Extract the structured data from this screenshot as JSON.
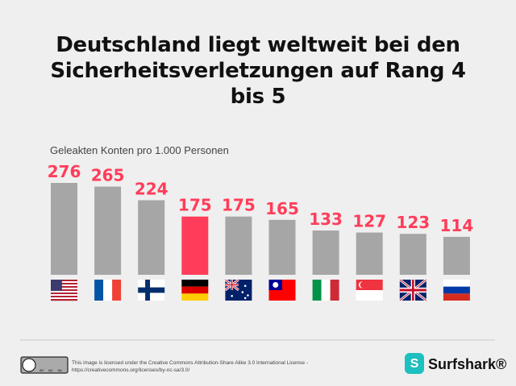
{
  "chart_data": {
    "type": "bar",
    "title": "Deutschland liegt weltweit bei den Sicherheitsverletzungen auf Rang 4 bis 5",
    "subtitle": "Geleakten Konten pro 1.000 Personen",
    "values": [
      276,
      265,
      224,
      175,
      175,
      165,
      133,
      127,
      123,
      114
    ],
    "colors": [
      "#a6a6a6",
      "#a6a6a6",
      "#a6a6a6",
      "#ff3d5a",
      "#a6a6a6",
      "#a6a6a6",
      "#a6a6a6",
      "#a6a6a6",
      "#a6a6a6",
      "#a6a6a6"
    ],
    "label_color": "#ff3d5a",
    "license_badge": [
      "BY",
      "NC",
      "SA"
    ],
    "license_text": "This image is licensed under the Creative Commons Attribution-Share Alike 3.0 International License - https://creativecommons.org/licenses/by-nc-sa/3.0/",
    "brand": "Surfshark®"
  }
}
